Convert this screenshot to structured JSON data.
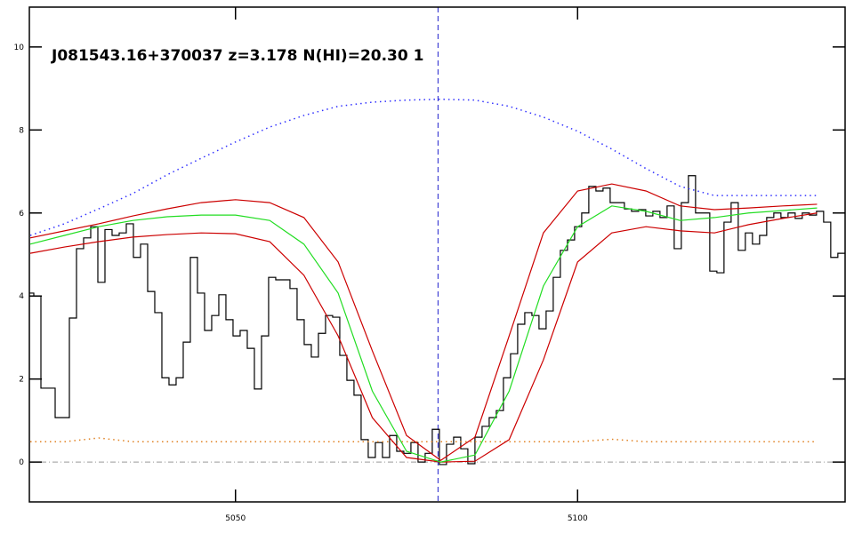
{
  "chart_data": {
    "type": "line",
    "annotation": "J081543.16+370037 z=3.178 N(HI)=20.30 1",
    "xlim": [
      5019.87,
      5139.1
    ],
    "ylim": [
      -0.96,
      10.96
    ],
    "xticks": [
      5050,
      5100
    ],
    "yticks": [
      0,
      2,
      4,
      6,
      8,
      10
    ],
    "reference_x": 5079.6,
    "reference_y": 0,
    "series": [
      {
        "name": "flux",
        "color": "#000000",
        "style": "step",
        "x": [
          5020,
          5021.04,
          5022.08,
          5023.12,
          5024.16,
          5025.2,
          5026.24,
          5027.28,
          5028.32,
          5029.36,
          5030.4,
          5031.44,
          5032.48,
          5033.52,
          5034.56,
          5035.6,
          5036.64,
          5037.68,
          5038.72,
          5039.76,
          5040.8,
          5041.84,
          5042.88,
          5043.92,
          5044.96,
          5046,
          5047.04,
          5048.08,
          5049.12,
          5050.16,
          5051.2,
          5052.24,
          5053.28,
          5054.32,
          5055.36,
          5056.4,
          5057.44,
          5058.48,
          5059.52,
          5060.56,
          5061.6,
          5062.64,
          5063.68,
          5064.72,
          5065.76,
          5066.8,
          5067.84,
          5068.88,
          5069.92,
          5070.96,
          5072,
          5073.04,
          5074.08,
          5075.12,
          5076.16,
          5077.2,
          5078.24,
          5079.28,
          5080.32,
          5081.36,
          5082.4,
          5083.44,
          5084.48,
          5085.52,
          5086.56,
          5087.6,
          5088.64,
          5089.68,
          5090.72,
          5091.76,
          5092.8,
          5093.84,
          5094.88,
          5095.92,
          5096.96,
          5098,
          5099.04,
          5100.08,
          5101.12,
          5102.16,
          5103.2,
          5104.24,
          5105.28,
          5106.32,
          5107.36,
          5108.4,
          5109.44,
          5110.48,
          5111.52,
          5112.56,
          5113.6,
          5114.64,
          5115.68,
          5116.72,
          5117.76,
          5118.8,
          5119.84,
          5120.88,
          5121.92,
          5122.96,
          5124,
          5125.04,
          5126.08,
          5127.12,
          5128.16,
          5129.2,
          5130.24,
          5131.28,
          5132.32,
          5133.36,
          5134.4,
          5135.44,
          5136.48,
          5137.52,
          5138.56
        ],
        "values": [
          4.07,
          4.0,
          1.78,
          1.78,
          1.07,
          1.07,
          3.47,
          5.14,
          5.4,
          5.67,
          4.33,
          5.6,
          5.46,
          5.52,
          5.74,
          4.93,
          5.25,
          4.11,
          3.6,
          2.03,
          1.86,
          2.03,
          2.89,
          4.93,
          4.07,
          3.17,
          3.53,
          4.03,
          3.43,
          3.04,
          3.17,
          2.74,
          1.76,
          3.04,
          4.45,
          4.39,
          4.39,
          4.18,
          3.43,
          2.83,
          2.53,
          3.1,
          3.53,
          3.49,
          2.57,
          1.97,
          1.61,
          0.54,
          0.11,
          0.47,
          0.11,
          0.64,
          0.26,
          0.21,
          0.47,
          0.0,
          0.21,
          0.79,
          -0.06,
          0.43,
          0.6,
          0.32,
          -0.04,
          0.6,
          0.86,
          1.07,
          1.24,
          2.03,
          2.61,
          3.32,
          3.6,
          3.53,
          3.21,
          3.64,
          4.45,
          5.1,
          5.35,
          5.67,
          6.0,
          6.64,
          6.53,
          6.6,
          6.25,
          6.25,
          6.1,
          6.04,
          6.08,
          5.93,
          6.04,
          5.89,
          6.17,
          5.14,
          6.25,
          6.9,
          6.0,
          6.0,
          4.6,
          4.56,
          5.78,
          6.25,
          5.1,
          5.52,
          5.25,
          5.46,
          5.89,
          6.0,
          5.89,
          6.0,
          5.87,
          6.0,
          5.95,
          6.04,
          5.78,
          4.93,
          5.03
        ]
      },
      {
        "name": "continuum",
        "color": "#3030ff",
        "style": "dotted",
        "x": [
          5020,
          5025,
          5030,
          5035,
          5040,
          5045,
          5050,
          5055,
          5060,
          5065,
          5070,
          5075,
          5080,
          5085,
          5090,
          5095,
          5100,
          5105,
          5110,
          5115,
          5120,
          5125,
          5130,
          5135
        ],
        "values": [
          5.46,
          5.74,
          6.1,
          6.47,
          6.92,
          7.32,
          7.71,
          8.07,
          8.35,
          8.57,
          8.67,
          8.72,
          8.74,
          8.72,
          8.57,
          8.31,
          7.97,
          7.54,
          7.07,
          6.64,
          6.42,
          6.42,
          6.42,
          6.42
        ]
      },
      {
        "name": "error",
        "color": "#e08020",
        "style": "dotted",
        "x": [
          5020,
          5025,
          5030,
          5035,
          5040,
          5045,
          5050,
          5055,
          5060,
          5065,
          5070,
          5075,
          5080,
          5085,
          5090,
          5095,
          5100,
          5105,
          5110,
          5115,
          5120,
          5125,
          5130,
          5135
        ],
        "values": [
          0.49,
          0.49,
          0.58,
          0.49,
          0.49,
          0.49,
          0.49,
          0.49,
          0.49,
          0.49,
          0.49,
          0.49,
          0.49,
          0.49,
          0.49,
          0.49,
          0.49,
          0.55,
          0.49,
          0.49,
          0.49,
          0.49,
          0.49,
          0.49
        ]
      },
      {
        "name": "fit-upper",
        "color": "#cc0000",
        "style": "solid",
        "x": [
          5020,
          5025,
          5030,
          5035,
          5040,
          5045,
          5050,
          5055,
          5060,
          5065,
          5070,
          5075,
          5080,
          5085,
          5090,
          5095,
          5100,
          5105,
          5110,
          5115,
          5120,
          5125,
          5130,
          5135
        ],
        "values": [
          5.4,
          5.57,
          5.74,
          5.93,
          6.1,
          6.25,
          6.32,
          6.25,
          5.89,
          4.82,
          2.68,
          0.64,
          0.04,
          0.6,
          3.04,
          5.52,
          6.53,
          6.7,
          6.53,
          6.17,
          6.08,
          6.12,
          6.17,
          6.21
        ]
      },
      {
        "name": "fit-lower",
        "color": "#cc0000",
        "style": "solid",
        "x": [
          5020,
          5025,
          5030,
          5035,
          5040,
          5045,
          5050,
          5055,
          5060,
          5065,
          5070,
          5075,
          5080,
          5085,
          5090,
          5095,
          5100,
          5105,
          5110,
          5115,
          5120,
          5125,
          5130,
          5135
        ],
        "values": [
          5.03,
          5.18,
          5.31,
          5.42,
          5.48,
          5.52,
          5.5,
          5.31,
          4.5,
          3.04,
          1.07,
          0.11,
          0,
          0.02,
          0.54,
          2.46,
          4.82,
          5.52,
          5.67,
          5.57,
          5.52,
          5.72,
          5.87,
          6.0
        ]
      },
      {
        "name": "fit",
        "color": "#22dd22",
        "style": "solid",
        "x": [
          5020,
          5025,
          5030,
          5035,
          5040,
          5045,
          5050,
          5055,
          5060,
          5065,
          5070,
          5075,
          5080,
          5085,
          5090,
          5095,
          5100,
          5105,
          5110,
          5115,
          5120,
          5125,
          5130,
          5135
        ],
        "values": [
          5.25,
          5.46,
          5.67,
          5.82,
          5.91,
          5.95,
          5.95,
          5.82,
          5.25,
          4.07,
          1.71,
          0.26,
          0.0,
          0.17,
          1.71,
          4.24,
          5.67,
          6.17,
          6.04,
          5.82,
          5.89,
          6.0,
          6.06,
          6.12
        ]
      }
    ]
  }
}
